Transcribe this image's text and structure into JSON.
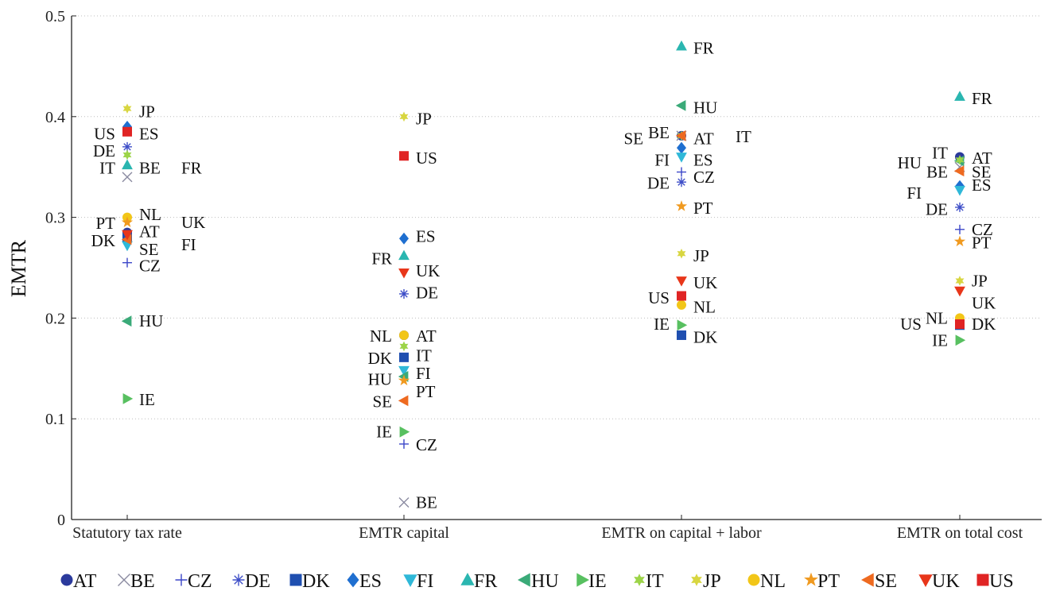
{
  "chart_data": {
    "type": "scatter",
    "ylabel": "EMTR",
    "xlabel": "",
    "title": "",
    "ylim": [
      0,
      0.5
    ],
    "yticks": [
      "0",
      "0.1",
      "0.2",
      "0.3",
      "0.4",
      "0.5"
    ],
    "categories": [
      "Statutory tax rate",
      "EMTR capital",
      "EMTR on capital + labor",
      "EMTR on total cost"
    ],
    "grid": "horizontal dotted",
    "legend_placement": "bottom",
    "countries": [
      {
        "code": "AT",
        "marker": "circle",
        "color": "#2b3a9c",
        "values": [
          0.285,
          0.183,
          0.381,
          0.36
        ]
      },
      {
        "code": "BE",
        "marker": "x",
        "color": "#8a8aa0",
        "values": [
          0.34,
          0.017,
          0.381,
          0.35
        ]
      },
      {
        "code": "CZ",
        "marker": "plus",
        "color": "#3a45c8",
        "values": [
          0.255,
          0.075,
          0.345,
          0.288
        ]
      },
      {
        "code": "DE",
        "marker": "asterisk",
        "color": "#3f4fc8",
        "values": [
          0.37,
          0.224,
          0.335,
          0.31
        ]
      },
      {
        "code": "DK",
        "marker": "square",
        "color": "#1f4fb0",
        "values": [
          0.28,
          0.161,
          0.183,
          0.193
        ]
      },
      {
        "code": "ES",
        "marker": "diamond",
        "color": "#1f6fd0",
        "values": [
          0.39,
          0.279,
          0.369,
          0.331
        ]
      },
      {
        "code": "FI",
        "marker": "triangle-down",
        "color": "#2fb8d8",
        "values": [
          0.272,
          0.148,
          0.36,
          0.327
        ]
      },
      {
        "code": "FR",
        "marker": "triangle-up",
        "color": "#2ab6b0",
        "values": [
          0.352,
          0.262,
          0.47,
          0.42
        ]
      },
      {
        "code": "HU",
        "marker": "triangle-left",
        "color": "#3aaa78",
        "values": [
          0.197,
          0.142,
          0.411,
          0.356
        ]
      },
      {
        "code": "IE",
        "marker": "triangle-right",
        "color": "#58c060",
        "values": [
          0.12,
          0.087,
          0.193,
          0.178
        ]
      },
      {
        "code": "IT",
        "marker": "star6",
        "color": "#9cd448",
        "values": [
          0.362,
          0.172,
          0.381,
          0.357
        ]
      },
      {
        "code": "JP",
        "marker": "star6",
        "color": "#d8d640",
        "values": [
          0.408,
          0.4,
          0.264,
          0.237
        ]
      },
      {
        "code": "NL",
        "marker": "circle",
        "color": "#f2c618",
        "values": [
          0.3,
          0.183,
          0.213,
          0.2
        ]
      },
      {
        "code": "PT",
        "marker": "star5",
        "color": "#f09a20",
        "values": [
          0.295,
          0.138,
          0.311,
          0.276
        ]
      },
      {
        "code": "SE",
        "marker": "triangle-left",
        "color": "#ee6a20",
        "values": [
          0.278,
          0.118,
          0.381,
          0.346
        ]
      },
      {
        "code": "UK",
        "marker": "triangle-down",
        "color": "#e8361a",
        "values": [
          0.283,
          0.245,
          0.237,
          0.227
        ]
      },
      {
        "code": "US",
        "marker": "square",
        "color": "#e02424",
        "values": [
          0.385,
          0.361,
          0.222,
          0.194
        ]
      }
    ],
    "labels": [
      {
        "text": "JP",
        "category": 0,
        "y": 0.405,
        "side": "right",
        "row": 0
      },
      {
        "text": "US",
        "category": 0,
        "y": 0.383,
        "side": "left",
        "row": 0
      },
      {
        "text": "ES",
        "category": 0,
        "y": 0.383,
        "side": "right",
        "row": 0
      },
      {
        "text": "DE",
        "category": 0,
        "y": 0.366,
        "side": "left",
        "row": 0
      },
      {
        "text": "IT",
        "category": 0,
        "y": 0.349,
        "side": "left",
        "row": 0
      },
      {
        "text": "BE",
        "category": 0,
        "y": 0.349,
        "side": "right",
        "row": 0
      },
      {
        "text": "FR",
        "category": 0,
        "y": 0.349,
        "side": "right",
        "row": 1
      },
      {
        "text": "NL",
        "category": 0,
        "y": 0.303,
        "side": "right",
        "row": 0
      },
      {
        "text": "UK",
        "category": 0,
        "y": 0.295,
        "side": "right",
        "row": 1
      },
      {
        "text": "PT",
        "category": 0,
        "y": 0.294,
        "side": "left",
        "row": 0
      },
      {
        "text": "AT",
        "category": 0,
        "y": 0.286,
        "side": "right",
        "row": 0
      },
      {
        "text": "DK",
        "category": 0,
        "y": 0.277,
        "side": "left",
        "row": 0
      },
      {
        "text": "SE",
        "category": 0,
        "y": 0.268,
        "side": "right",
        "row": 0
      },
      {
        "text": "FI",
        "category": 0,
        "y": 0.273,
        "side": "right",
        "row": 1
      },
      {
        "text": "CZ",
        "category": 0,
        "y": 0.252,
        "side": "right",
        "row": 0
      },
      {
        "text": "HU",
        "category": 0,
        "y": 0.197,
        "side": "right",
        "row": 0
      },
      {
        "text": "IE",
        "category": 0,
        "y": 0.119,
        "side": "right",
        "row": 0
      },
      {
        "text": "JP",
        "category": 1,
        "y": 0.398,
        "side": "right",
        "row": 0
      },
      {
        "text": "US",
        "category": 1,
        "y": 0.359,
        "side": "right",
        "row": 0
      },
      {
        "text": "ES",
        "category": 1,
        "y": 0.281,
        "side": "right",
        "row": 0
      },
      {
        "text": "FR",
        "category": 1,
        "y": 0.259,
        "side": "left",
        "row": 0
      },
      {
        "text": "UK",
        "category": 1,
        "y": 0.247,
        "side": "right",
        "row": 0
      },
      {
        "text": "DE",
        "category": 1,
        "y": 0.225,
        "side": "right",
        "row": 0
      },
      {
        "text": "NL",
        "category": 1,
        "y": 0.182,
        "side": "left",
        "row": 0
      },
      {
        "text": "AT",
        "category": 1,
        "y": 0.182,
        "side": "right",
        "row": 0
      },
      {
        "text": "DK",
        "category": 1,
        "y": 0.16,
        "side": "left",
        "row": 0
      },
      {
        "text": "IT",
        "category": 1,
        "y": 0.163,
        "side": "right",
        "row": 0
      },
      {
        "text": "HU",
        "category": 1,
        "y": 0.139,
        "side": "left",
        "row": 0
      },
      {
        "text": "FI",
        "category": 1,
        "y": 0.145,
        "side": "right",
        "row": 0
      },
      {
        "text": "PT",
        "category": 1,
        "y": 0.127,
        "side": "right",
        "row": 0
      },
      {
        "text": "SE",
        "category": 1,
        "y": 0.117,
        "side": "left",
        "row": 0
      },
      {
        "text": "IE",
        "category": 1,
        "y": 0.087,
        "side": "left",
        "row": 0
      },
      {
        "text": "CZ",
        "category": 1,
        "y": 0.074,
        "side": "right",
        "row": 0
      },
      {
        "text": "BE",
        "category": 1,
        "y": 0.017,
        "side": "right",
        "row": 0
      },
      {
        "text": "FR",
        "category": 2,
        "y": 0.468,
        "side": "right",
        "row": 0
      },
      {
        "text": "HU",
        "category": 2,
        "y": 0.409,
        "side": "right",
        "row": 0
      },
      {
        "text": "BE",
        "category": 2,
        "y": 0.384,
        "side": "left",
        "row": 0
      },
      {
        "text": "SE",
        "category": 2,
        "y": 0.378,
        "side": "left",
        "row": 1
      },
      {
        "text": "AT",
        "category": 2,
        "y": 0.378,
        "side": "right",
        "row": 0
      },
      {
        "text": "IT",
        "category": 2,
        "y": 0.38,
        "side": "right",
        "row": 1
      },
      {
        "text": "FI",
        "category": 2,
        "y": 0.357,
        "side": "left",
        "row": 0
      },
      {
        "text": "ES",
        "category": 2,
        "y": 0.357,
        "side": "right",
        "row": 0
      },
      {
        "text": "DE",
        "category": 2,
        "y": 0.334,
        "side": "left",
        "row": 0
      },
      {
        "text": "CZ",
        "category": 2,
        "y": 0.34,
        "side": "right",
        "row": 0
      },
      {
        "text": "PT",
        "category": 2,
        "y": 0.309,
        "side": "right",
        "row": 0
      },
      {
        "text": "JP",
        "category": 2,
        "y": 0.262,
        "side": "right",
        "row": 0
      },
      {
        "text": "UK",
        "category": 2,
        "y": 0.235,
        "side": "right",
        "row": 0
      },
      {
        "text": "US",
        "category": 2,
        "y": 0.22,
        "side": "left",
        "row": 0
      },
      {
        "text": "NL",
        "category": 2,
        "y": 0.211,
        "side": "right",
        "row": 0
      },
      {
        "text": "IE",
        "category": 2,
        "y": 0.194,
        "side": "left",
        "row": 0
      },
      {
        "text": "DK",
        "category": 2,
        "y": 0.181,
        "side": "right",
        "row": 0
      },
      {
        "text": "FR",
        "category": 3,
        "y": 0.418,
        "side": "right",
        "row": 0
      },
      {
        "text": "IT",
        "category": 3,
        "y": 0.364,
        "side": "left",
        "row": 0
      },
      {
        "text": "AT",
        "category": 3,
        "y": 0.359,
        "side": "right",
        "row": 0
      },
      {
        "text": "HU",
        "category": 3,
        "y": 0.354,
        "side": "left",
        "row": 1
      },
      {
        "text": "BE",
        "category": 3,
        "y": 0.345,
        "side": "left",
        "row": 0
      },
      {
        "text": "SE",
        "category": 3,
        "y": 0.345,
        "side": "right",
        "row": 0
      },
      {
        "text": "ES",
        "category": 3,
        "y": 0.332,
        "side": "right",
        "row": 0
      },
      {
        "text": "FI",
        "category": 3,
        "y": 0.324,
        "side": "left",
        "row": 1
      },
      {
        "text": "DE",
        "category": 3,
        "y": 0.308,
        "side": "left",
        "row": 0
      },
      {
        "text": "CZ",
        "category": 3,
        "y": 0.288,
        "side": "right",
        "row": 0
      },
      {
        "text": "PT",
        "category": 3,
        "y": 0.275,
        "side": "right",
        "row": 0
      },
      {
        "text": "JP",
        "category": 3,
        "y": 0.237,
        "side": "right",
        "row": 0
      },
      {
        "text": "UK",
        "category": 3,
        "y": 0.215,
        "side": "right",
        "row": 0
      },
      {
        "text": "NL",
        "category": 3,
        "y": 0.2,
        "side": "left",
        "row": 0
      },
      {
        "text": "US",
        "category": 3,
        "y": 0.194,
        "side": "left",
        "row": 1
      },
      {
        "text": "DK",
        "category": 3,
        "y": 0.194,
        "side": "right",
        "row": 0
      },
      {
        "text": "IE",
        "category": 3,
        "y": 0.178,
        "side": "left",
        "row": 0
      }
    ]
  }
}
